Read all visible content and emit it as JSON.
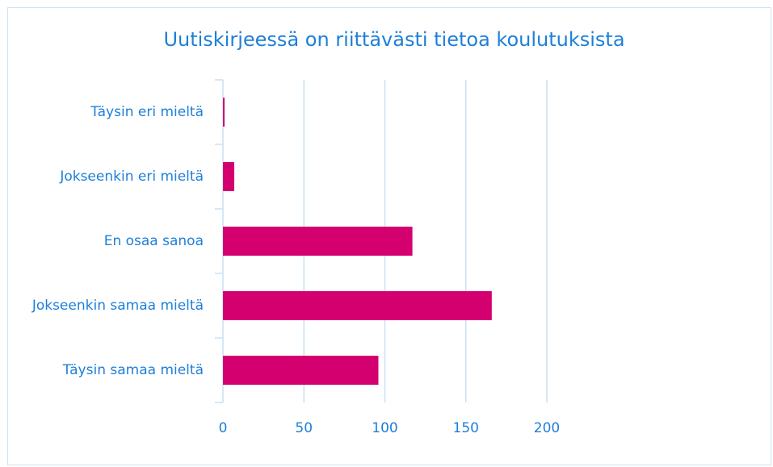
{
  "chart_data": {
    "type": "barh",
    "title": "Uutiskirjeessä on riittävästi tietoa koulutuksista",
    "categories": [
      "Täysin eri mieltä",
      "Jokseenkin eri mieltä",
      "En osaa sanoa",
      "Jokseenkin samaa mieltä",
      "Täysin samaa mieltä"
    ],
    "values": [
      1,
      7,
      117,
      166,
      96
    ],
    "color": "#d4006f",
    "xlim": [
      0,
      200
    ],
    "xticks": [
      0,
      50,
      100,
      150,
      200
    ],
    "grid": true
  }
}
